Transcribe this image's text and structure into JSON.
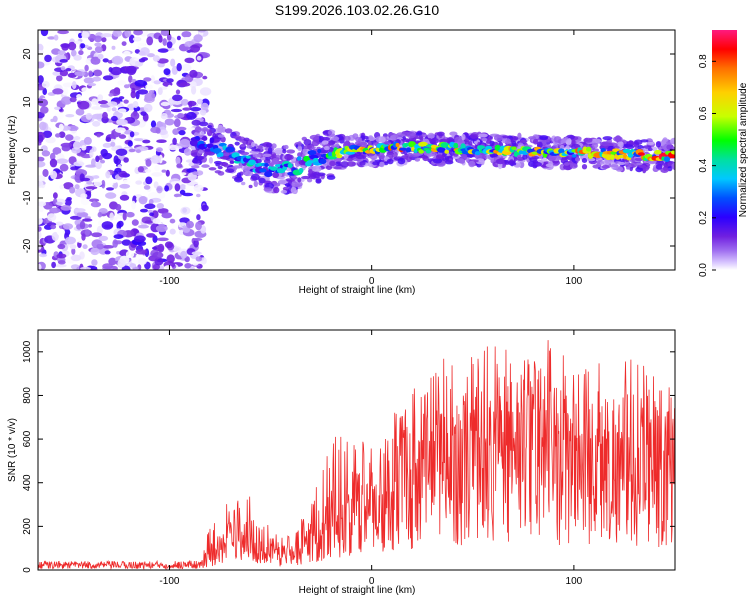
{
  "title": "S199.2026.103.02.26.G10",
  "colors": {
    "snr_line": "#ee2b2b",
    "colormap": [
      "#ffffff",
      "#d9c8ff",
      "#8a2be2",
      "#2b00ff",
      "#0050ff",
      "#00c8ff",
      "#00e0a0",
      "#00ff00",
      "#c8ff00",
      "#ffd000",
      "#ff7000",
      "#ff0000",
      "#ff1a7f"
    ]
  },
  "chart_data": [
    {
      "type": "heatmap",
      "title": "S199.2026.103.02.26.G10",
      "xlabel": "Height of straight line (km)",
      "ylabel": "Frequency (Hz)",
      "xlim": [
        -165,
        150
      ],
      "ylim": [
        -25,
        25
      ],
      "xticks": [
        -100,
        0,
        100
      ],
      "xtick_labels": [
        "-100",
        "0",
        "100"
      ],
      "yticks": [
        -20,
        -10,
        0,
        10,
        20
      ],
      "ytick_labels": [
        "-20",
        "-10",
        "0",
        "10",
        "20"
      ],
      "colorbar": {
        "label": "Normalized spectral amplitude",
        "range": [
          0.0,
          0.92
        ],
        "ticks": [
          0.0,
          0.2,
          0.4,
          0.6,
          0.8
        ],
        "tick_labels": [
          "0.0",
          "0.2",
          "0.4",
          "0.6",
          "0.8"
        ]
      },
      "signal_ridge": {
        "x": [
          -88,
          -80,
          -70,
          -60,
          -50,
          -40,
          -30,
          -20,
          -10,
          0,
          10,
          20,
          40,
          60,
          80,
          100,
          120,
          140,
          150
        ],
        "frequency": [
          2,
          1,
          -1,
          -3,
          -4,
          -4,
          -2,
          -1,
          0,
          0,
          0.3,
          0.5,
          0.3,
          0,
          -0.3,
          -0.5,
          -0.8,
          -1.2,
          -1.2
        ],
        "peak_amplitude": [
          0.3,
          0.35,
          0.4,
          0.45,
          0.4,
          0.45,
          0.5,
          0.6,
          0.7,
          0.8,
          0.85,
          0.85,
          0.8,
          0.75,
          0.8,
          0.8,
          0.85,
          0.9,
          0.9
        ]
      },
      "noise_region": {
        "x_range": [
          -165,
          -90
        ],
        "frequency_range": [
          -25,
          25
        ],
        "amplitude_range": [
          0.0,
          0.2
        ]
      }
    },
    {
      "type": "line",
      "xlabel": "Height of straight line (km)",
      "ylabel": "SNR (10 * v/v)",
      "xlim": [
        -165,
        150
      ],
      "ylim": [
        0,
        1100
      ],
      "xticks": [
        -100,
        0,
        100
      ],
      "xtick_labels": [
        "-100",
        "0",
        "100"
      ],
      "yticks": [
        0,
        200,
        400,
        600,
        800,
        1000
      ],
      "ytick_labels": [
        "0",
        "200",
        "400",
        "600",
        "800",
        "1000"
      ],
      "series": [
        {
          "name": "SNR",
          "envelope_x": [
            -165,
            -140,
            -110,
            -85,
            -80,
            -70,
            -62,
            -55,
            -45,
            -38,
            -30,
            -20,
            -10,
            0,
            10,
            20,
            30,
            40,
            50,
            60,
            70,
            80,
            90,
            100,
            110,
            120,
            130,
            140,
            150
          ],
          "envelope_mean": [
            25,
            25,
            25,
            28,
            80,
            150,
            180,
            130,
            80,
            90,
            160,
            250,
            300,
            330,
            400,
            480,
            520,
            560,
            560,
            570,
            560,
            580,
            560,
            570,
            570,
            560,
            550,
            500,
            480
          ],
          "envelope_max": [
            40,
            40,
            40,
            45,
            200,
            340,
            370,
            250,
            160,
            180,
            350,
            620,
            610,
            600,
            700,
            850,
            960,
            990,
            1000,
            1070,
            1000,
            960,
            1090,
            990,
            1000,
            950,
            970,
            930,
            800
          ]
        }
      ]
    }
  ]
}
